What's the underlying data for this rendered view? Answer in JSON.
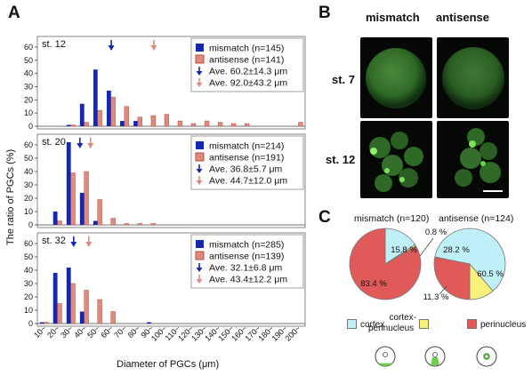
{
  "panels": {
    "a": "A",
    "b": "B",
    "c": "C"
  },
  "histograms": {
    "ylabel": "The ratio of PGCs (%)",
    "xlabel": "Diameter of PGCs (μm)",
    "x_ticks": [
      "10~",
      "20~",
      "30~",
      "40~",
      "50~",
      "60~",
      "70~",
      "80~",
      "90~",
      "100~",
      "110~",
      "120~",
      "130~",
      "140~",
      "150~",
      "160~",
      "170~",
      "180~",
      "190~",
      "200~"
    ],
    "y_ticks": [
      "0",
      "10",
      "20",
      "30",
      "40",
      "50",
      "60"
    ]
  },
  "chart_data": [
    {
      "type": "bar",
      "title": "st. 12",
      "categories": [
        "10~",
        "20~",
        "30~",
        "40~",
        "50~",
        "60~",
        "70~",
        "80~",
        "90~",
        "100~",
        "110~",
        "120~",
        "130~",
        "140~",
        "150~",
        "160~",
        "170~",
        "180~",
        "190~",
        "200~"
      ],
      "ylim": [
        0,
        60
      ],
      "series": [
        {
          "name": "mismatch",
          "legend": "mismatch    (n=145)",
          "color": "#1428b4",
          "values": [
            0,
            0,
            1,
            17,
            43,
            27,
            4,
            4,
            0,
            0,
            0,
            0,
            0,
            0,
            0,
            0,
            0,
            0,
            0,
            0
          ]
        },
        {
          "name": "antisense",
          "legend": "antisense    (n=141)",
          "color": "#e08a7e",
          "values": [
            0,
            0,
            1,
            3,
            12,
            22,
            15,
            7,
            8,
            9,
            4,
            2,
            4,
            3,
            2,
            2,
            0,
            0,
            0,
            3
          ]
        }
      ],
      "averages": [
        {
          "label": "Ave.  60.2±14.3  μm",
          "value": 60.2,
          "color": "#1428b4"
        },
        {
          "label": "Ave.  92.0±43.2  μm",
          "value": 92.0,
          "color": "#e08a7e"
        }
      ]
    },
    {
      "type": "bar",
      "title": "st. 20",
      "categories": [
        "10~",
        "20~",
        "30~",
        "40~",
        "50~",
        "60~",
        "70~",
        "80~",
        "90~",
        "100~",
        "110~",
        "120~",
        "130~",
        "140~",
        "150~",
        "160~",
        "170~",
        "180~",
        "190~",
        "200~"
      ],
      "ylim": [
        0,
        60
      ],
      "series": [
        {
          "name": "mismatch",
          "legend": "mismatch    (n=214)",
          "color": "#1428b4",
          "values": [
            0,
            10,
            62,
            24,
            3,
            0,
            0,
            0,
            0,
            0,
            0,
            0,
            0,
            0,
            0,
            0,
            0,
            0,
            0,
            0
          ]
        },
        {
          "name": "antisense",
          "legend": "antisense    (n=191)",
          "color": "#e08a7e",
          "values": [
            0,
            3,
            39,
            40,
            19,
            5,
            1,
            1,
            1,
            0,
            0,
            0,
            0,
            0,
            0,
            0,
            0,
            0,
            0,
            0
          ]
        }
      ],
      "averages": [
        {
          "label": "Ave.  36.8±5.7    μm",
          "value": 36.8,
          "color": "#1428b4"
        },
        {
          "label": "Ave.  44.7±12.0 μm",
          "value": 44.7,
          "color": "#e08a7e"
        }
      ]
    },
    {
      "type": "bar",
      "title": "st. 32",
      "categories": [
        "10~",
        "20~",
        "30~",
        "40~",
        "50~",
        "60~",
        "70~",
        "80~",
        "90~",
        "100~",
        "110~",
        "120~",
        "130~",
        "140~",
        "150~",
        "160~",
        "170~",
        "180~",
        "190~",
        "200~"
      ],
      "ylim": [
        0,
        60
      ],
      "series": [
        {
          "name": "mismatch",
          "legend": "mismatch    (n=285)",
          "color": "#1428b4",
          "values": [
            1,
            38,
            42,
            9,
            0,
            0,
            0,
            0,
            1,
            0,
            0,
            0,
            0,
            0,
            0,
            0,
            0,
            0,
            0,
            0
          ]
        },
        {
          "name": "antisense",
          "legend": "antisense    (n=139)",
          "color": "#e08a7e",
          "values": [
            1,
            15,
            30,
            25,
            18,
            9,
            0,
            0,
            0,
            0,
            0,
            0,
            0,
            0,
            0,
            0,
            0,
            0,
            0,
            0
          ]
        }
      ],
      "averages": [
        {
          "label": "Ave.  32.1±6.8    μm",
          "value": 32.1,
          "color": "#1428b4"
        },
        {
          "label": "Ave.  43.4±12.2  μm",
          "value": 43.4,
          "color": "#e08a7e"
        }
      ]
    },
    {
      "type": "pie",
      "title": "mismatch (n=120)",
      "slices": [
        {
          "name": "cortex",
          "value": 15.8,
          "label": "15.8 %",
          "color": "#bff0f7"
        },
        {
          "name": "cortex-perinucleus",
          "value": 0.8,
          "label": "0.8 %",
          "color": "#f7f07a"
        },
        {
          "name": "perinucleus",
          "value": 83.4,
          "label": "83.4 %",
          "color": "#e05a5a"
        }
      ]
    },
    {
      "type": "pie",
      "title": "antisense (n=124)",
      "slices": [
        {
          "name": "cortex",
          "value": 60.5,
          "label": "60.5 %",
          "color": "#bff0f7"
        },
        {
          "name": "cortex-perinucleus",
          "value": 11.3,
          "label": "11.3 %",
          "color": "#f7f07a"
        },
        {
          "name": "perinucleus",
          "value": 28.2,
          "label": "28.2 %",
          "color": "#e05a5a"
        }
      ]
    }
  ],
  "micrographs": {
    "col_mismatch": "mismatch",
    "col_antisense": "antisense",
    "row_st7": "st. 7",
    "row_st12": "st. 12"
  },
  "pie_legend": {
    "cortex": "cortex",
    "cortex_perinucleus_1": "cortex-",
    "cortex_perinucleus_2": "perinucleus",
    "perinucleus": "perinucleus",
    "colors": {
      "cortex": "#bff0f7",
      "cortex_perinucleus": "#f7f07a",
      "perinucleus": "#e05a5a"
    }
  }
}
